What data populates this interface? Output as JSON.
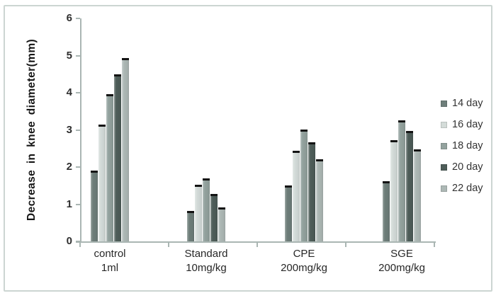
{
  "figure": {
    "border_color": "#ccd5d2",
    "axis_color": "#aab6b3",
    "bar_cap_color": "#141414"
  },
  "chart_data": {
    "type": "bar",
    "ylabel": "Decrease in knee diameter(mm)",
    "xlabel": "",
    "ylim": [
      0,
      6
    ],
    "ytick_step": 1,
    "ytick_labels": [
      "0",
      "1",
      "2",
      "3",
      "4",
      "5",
      "6"
    ],
    "grid": false,
    "legend_position": "right",
    "categories": [
      {
        "line1": "control",
        "line2": "1ml"
      },
      {
        "line1": "Standard",
        "line2": "10mg/kg"
      },
      {
        "line1": "CPE",
        "line2": "200mg/kg"
      },
      {
        "line1": "SGE",
        "line2": "200mg/kg"
      }
    ],
    "series": [
      {
        "name": "14 day",
        "color": "#6e7e7a",
        "values": [
          1.9,
          0.82,
          1.5,
          1.62
        ]
      },
      {
        "name": "16 day",
        "color": "#d4dcd9",
        "values": [
          3.15,
          1.52,
          2.43,
          2.72
        ]
      },
      {
        "name": "18 day",
        "color": "#93a29e",
        "values": [
          3.97,
          1.7,
          3.0,
          3.25
        ]
      },
      {
        "name": "20 day",
        "color": "#4e5d59",
        "values": [
          4.5,
          1.27,
          2.67,
          2.97
        ]
      },
      {
        "name": "22 day",
        "color": "#adb8b5",
        "values": [
          4.93,
          0.92,
          2.2,
          2.48
        ]
      }
    ]
  }
}
